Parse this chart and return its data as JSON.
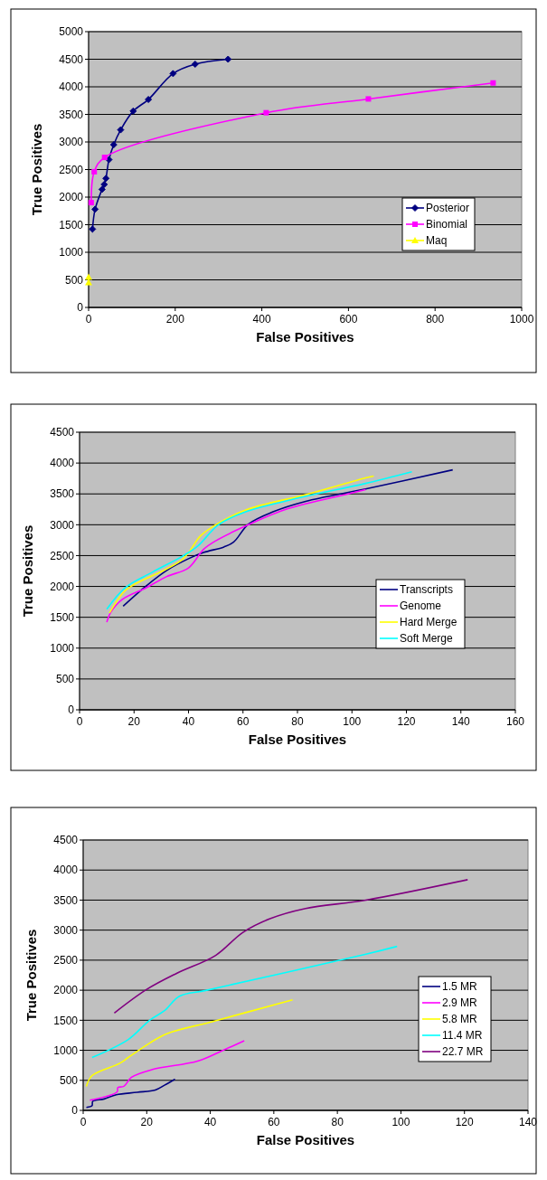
{
  "chart_data": [
    {
      "type": "line",
      "xlabel": "False Positives",
      "ylabel": "True Positives",
      "xlim": [
        0,
        1000
      ],
      "xticks": [
        0,
        200,
        400,
        600,
        800,
        1000
      ],
      "ylim": [
        0,
        5000
      ],
      "yticks": [
        0,
        500,
        1000,
        1500,
        2000,
        2500,
        3000,
        3500,
        4000,
        4500,
        5000
      ],
      "grid": "y",
      "legend": "right",
      "series": [
        {
          "name": "Posterior",
          "color": "#000080",
          "marker": "diamond",
          "x": [
            9,
            15,
            31,
            36,
            40,
            47,
            58,
            74,
            103,
            138,
            195,
            246,
            322
          ],
          "values": [
            1420,
            1780,
            2140,
            2230,
            2340,
            2680,
            2950,
            3220,
            3560,
            3770,
            4240,
            4410,
            4500
          ]
        },
        {
          "name": "Binomial",
          "color": "#ff00ff",
          "marker": "square",
          "x": [
            6,
            13,
            37,
            410,
            646,
            934
          ],
          "values": [
            1900,
            2460,
            2720,
            3530,
            3780,
            4070
          ]
        },
        {
          "name": "Maq",
          "color": "#ffff00",
          "marker": "triangle",
          "x": [
            0,
            0
          ],
          "values": [
            550,
            450
          ]
        }
      ]
    },
    {
      "type": "line",
      "xlabel": "False Positives",
      "ylabel": "True Positives",
      "xlim": [
        0,
        160
      ],
      "xticks": [
        0,
        20,
        40,
        60,
        80,
        100,
        120,
        140,
        160
      ],
      "ylim": [
        0,
        4500
      ],
      "yticks": [
        0,
        500,
        1000,
        1500,
        2000,
        2500,
        3000,
        3500,
        4000,
        4500
      ],
      "grid": "y",
      "legend": "right",
      "series": [
        {
          "name": "Transcripts",
          "color": "#000080",
          "x": [
            16,
            24.5,
            32,
            40,
            45.5,
            53,
            56.6,
            62,
            71,
            83,
            105,
            137
          ],
          "values": [
            1680,
            2010,
            2260,
            2450,
            2550,
            2640,
            2720,
            3010,
            3210,
            3380,
            3580,
            3890
          ]
        },
        {
          "name": "Genome",
          "color": "#ff00ff",
          "x": [
            10,
            11.3,
            15.7,
            24.5,
            32,
            40,
            45.5,
            50,
            62,
            76.5,
            98.6,
            105
          ],
          "values": [
            1420,
            1570,
            1790,
            1980,
            2160,
            2300,
            2600,
            2740,
            3000,
            3260,
            3500,
            3570
          ]
        },
        {
          "name": "Hard Merge",
          "color": "#ffff00",
          "x": [
            11,
            16.2,
            20,
            37.8,
            44.4,
            50,
            61,
            84,
            105,
            108
          ],
          "values": [
            1570,
            1910,
            2030,
            2440,
            2820,
            3000,
            3240,
            3500,
            3760,
            3790
          ]
        },
        {
          "name": "Soft Merge",
          "color": "#00ffff",
          "x": [
            10,
            16.8,
            26.7,
            37.8,
            43.3,
            51,
            61,
            81,
            105,
            122
          ],
          "values": [
            1630,
            1980,
            2230,
            2490,
            2650,
            3000,
            3210,
            3440,
            3670,
            3860
          ]
        }
      ]
    },
    {
      "type": "line",
      "xlabel": "False Positives",
      "ylabel": "True Positives",
      "xlim": [
        0,
        140
      ],
      "xticks": [
        0,
        20,
        40,
        60,
        80,
        100,
        120,
        140
      ],
      "ylim": [
        0,
        4500
      ],
      "yticks": [
        0,
        500,
        1000,
        1500,
        2000,
        2500,
        3000,
        3500,
        4000,
        4500
      ],
      "grid": "y",
      "legend": "right",
      "series": [
        {
          "name": "1.5 MR",
          "color": "#000080",
          "x": [
            1,
            2.8,
            3,
            6.6,
            10.4,
            17,
            22.7,
            25.6,
            28.9
          ],
          "values": [
            50,
            80,
            150,
            190,
            260,
            300,
            340,
            420,
            520
          ]
        },
        {
          "name": "2.9 MR",
          "color": "#ff00ff",
          "x": [
            2.1,
            10.7,
            10.9,
            12.8,
            15.2,
            21.8,
            36,
            43.6,
            50.7
          ],
          "values": [
            170,
            310,
            380,
            400,
            550,
            680,
            820,
            990,
            1160
          ]
        },
        {
          "name": "5.8 MR",
          "color": "#ffff00",
          "x": [
            1,
            2.8,
            11.4,
            14.2,
            20.9,
            26.5,
            40.8,
            65.9
          ],
          "values": [
            400,
            580,
            780,
            880,
            1120,
            1280,
            1480,
            1840
          ]
        },
        {
          "name": "11.4 MR",
          "color": "#00ffff",
          "x": [
            2.8,
            14.2,
            20.9,
            25.6,
            30.3,
            38.9,
            89,
            98.8
          ],
          "values": [
            880,
            1180,
            1500,
            1660,
            1900,
            2000,
            2600,
            2730
          ]
        },
        {
          "name": "22.7 MR",
          "color": "#800080",
          "x": [
            9.8,
            19.9,
            29.4,
            41.7,
            50.2,
            58.8,
            70,
            89,
            121
          ],
          "values": [
            1620,
            2010,
            2280,
            2580,
            2960,
            3190,
            3360,
            3500,
            3840
          ]
        }
      ]
    }
  ]
}
